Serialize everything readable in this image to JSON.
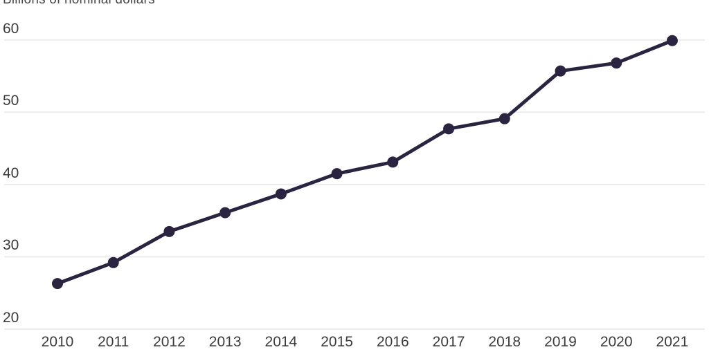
{
  "chart_data": {
    "type": "line",
    "title": "Billions of nominal dollars",
    "x": [
      "2010",
      "2011",
      "2012",
      "2013",
      "2014",
      "2015",
      "2016",
      "2017",
      "2018",
      "2019",
      "2020",
      "2021"
    ],
    "values": [
      26.3,
      29.2,
      33.5,
      36.1,
      38.7,
      41.5,
      43.1,
      47.7,
      49.1,
      55.7,
      56.8,
      59.9
    ],
    "xlabel": "",
    "ylabel": "Billions of nominal dollars",
    "ylim": [
      20,
      60
    ],
    "yticks": [
      20,
      30,
      40,
      50,
      60
    ],
    "grid": "horizontal",
    "legend": "none",
    "marker": "circle",
    "colors": {
      "line": "#2b2440",
      "marker": "#2b2440",
      "grid": "#ebebeb",
      "tick_text": "#3b3b3b",
      "title_text": "#4a4a4a"
    }
  }
}
